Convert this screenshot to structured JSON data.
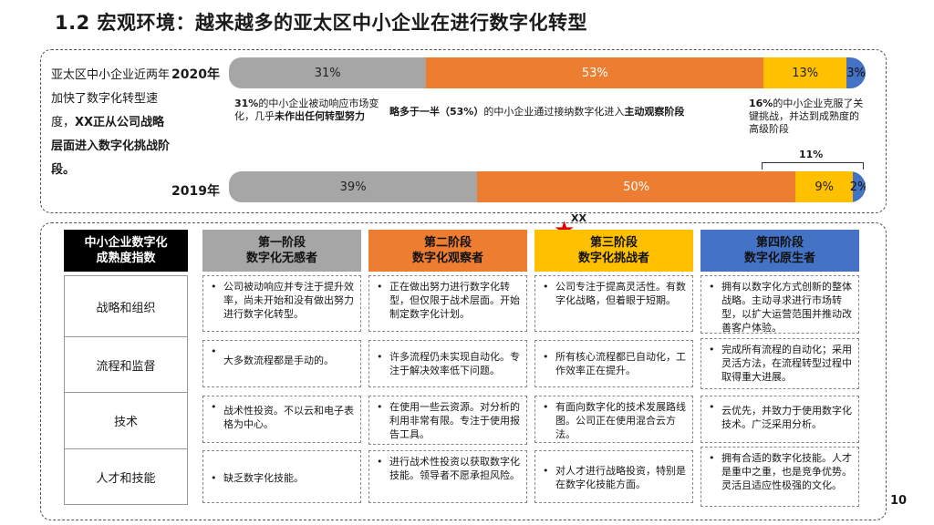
{
  "title": "1.2 宏观环境：越来越多的亚太区中小企业在进行数字化转型",
  "intro": {
    "normal": "亚太区中小企业近两年加快了数字化转型速度，",
    "bold": "XX正从公司战略层面进入数字化挑战阶段。"
  },
  "chart_data": {
    "type": "bar",
    "categories": [
      "2020年",
      "2019年"
    ],
    "series": [
      {
        "values": [
          31,
          39
        ]
      },
      {
        "values": [
          53,
          50
        ]
      },
      {
        "values": [
          13,
          9
        ]
      },
      {
        "values": [
          3,
          2
        ]
      }
    ],
    "value_labels": [
      [
        "31%",
        "53%",
        "13%",
        "3%"
      ],
      [
        "39%",
        "50%",
        "9%",
        "2%"
      ]
    ],
    "colors": [
      "#a6a6a6",
      "#ed7d31",
      "#ffc000",
      "#4472c4"
    ],
    "bracket_label": "11%"
  },
  "notes": {
    "n1_a": "31%",
    "n1_b": "的中小企业被动响应市场变化，几乎",
    "n1_c": "未作出任何转型努力",
    "n2_a": "略多于一半（53%）",
    "n2_b": "的中小企业通过接纳数字化进入",
    "n2_c": "主动观察阶段",
    "n3_a": "16%",
    "n3_b": "的中小企业克服了关键挑战，并达到成熟度的高级阶段"
  },
  "marker": {
    "label": "XX"
  },
  "table": {
    "corner": [
      "中小企业数字化",
      "成熟度指数"
    ],
    "stages": [
      [
        "第一阶段",
        "数字化无感者"
      ],
      [
        "第二阶段",
        "数字化观察者"
      ],
      [
        "第三阶段",
        "数字化挑战者"
      ],
      [
        "第四阶段",
        "数字化原生者"
      ]
    ],
    "rows": [
      {
        "label": "战略和组织",
        "cells": [
          "公司被动响应并专注于提升效率，尚未开始和没有做出努力进行数字化转型。",
          "正在做出努力进行数字化转型，但仅限于战术层面。开始制定数字化计划。",
          "公司专注于提高灵活性。有数字化战略，但着眼于短期。",
          "拥有以数字化方式创新的整体战略。主动寻求进行市场转型，以扩大运营范围并推动改善客户体验。"
        ]
      },
      {
        "label": "流程和监督",
        "cells": [
          "大多数流程都是手动的。",
          "许多流程仍未实现自动化。专注于解决效率低下问题。",
          "所有核心流程都已自动化，工作效率正在提升。",
          "完成所有流程的自动化；采用灵活方法，在流程转型过程中取得重大进展。"
        ]
      },
      {
        "label": "技术",
        "cells": [
          "战术性投资。不以云和电子表格为中心。",
          "在使用一些云资源。对分析的利用非常有限。专注于使用报告工具。",
          "有面向数字化的技术发展路线图。公司正在使用混合云方法。",
          "云优先，并致力于使用数字化技术。广泛采用分析。"
        ]
      },
      {
        "label": "人才和技能",
        "cells": [
          "缺乏数字化技能。",
          "进行战术性投资以获取数字化技能。领导者不愿承担风险。",
          "对人才进行战略投资，特别是在数字化技能方面。",
          "拥有合适的数字化技能。人才是重中之重，也是竞争优势。灵活且适应性极强的文化。"
        ]
      }
    ]
  },
  "page_number": "10"
}
